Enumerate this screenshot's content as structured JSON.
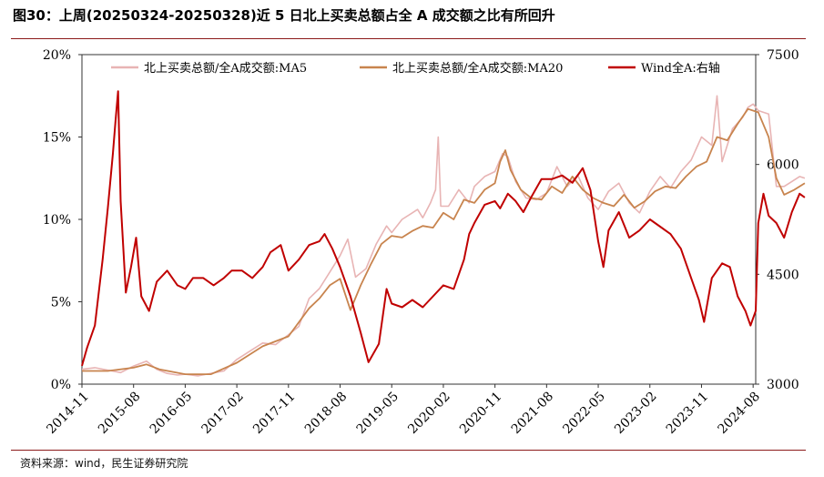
{
  "header": {
    "title": "图30：上周(20250324-20250328)近 5 日北上买卖总额占全 A 成交额之比有所回升"
  },
  "footer": {
    "source": "资料来源：wind，民生证券研究院"
  },
  "colors": {
    "ma5": "#e8b4b4",
    "ma20": "#c8844e",
    "wind": "#c00000",
    "rule": "#8b1a1a"
  },
  "chart_data": {
    "type": "line",
    "title": "上周(20250324-20250328)近 5 日北上买卖总额占全 A 成交额之比有所回升",
    "x_labels": [
      "2014-11",
      "2015-08",
      "2016-05",
      "2017-02",
      "2017-11",
      "2018-08",
      "2019-05",
      "2020-02",
      "2020-11",
      "2021-08",
      "2022-05",
      "2023-02",
      "2023-11",
      "2024-08"
    ],
    "y_left": {
      "range": [
        0,
        20
      ],
      "ticks": [
        "0%",
        "5%",
        "10%",
        "15%",
        "20%"
      ]
    },
    "y_right": {
      "range": [
        3000,
        7500
      ],
      "ticks": [
        "3000",
        "4500",
        "6000",
        "7500"
      ]
    },
    "legend": {
      "position": "top",
      "entries": [
        "北上买卖总额/全A成交额:MA5",
        "北上买卖总额/全A成交额:MA20",
        "Wind全A:右轴"
      ]
    },
    "series": [
      {
        "name": "北上买卖总额/全A成交额:MA5",
        "axis": "left",
        "points": [
          [
            0,
            0.9
          ],
          [
            0.25,
            1.0
          ],
          [
            0.5,
            0.85
          ],
          [
            0.75,
            0.7
          ],
          [
            1.0,
            1.1
          ],
          [
            1.25,
            1.4
          ],
          [
            1.45,
            0.9
          ],
          [
            1.65,
            0.65
          ],
          [
            1.85,
            0.55
          ],
          [
            2.0,
            0.6
          ],
          [
            2.25,
            0.5
          ],
          [
            2.5,
            0.65
          ],
          [
            2.75,
            0.8
          ],
          [
            3.0,
            1.5
          ],
          [
            3.25,
            2.0
          ],
          [
            3.5,
            2.5
          ],
          [
            3.75,
            2.4
          ],
          [
            4.0,
            3.0
          ],
          [
            4.2,
            3.5
          ],
          [
            4.4,
            5.2
          ],
          [
            4.6,
            5.8
          ],
          [
            4.8,
            6.8
          ],
          [
            5.0,
            7.8
          ],
          [
            5.15,
            8.8
          ],
          [
            5.3,
            6.5
          ],
          [
            5.5,
            7.0
          ],
          [
            5.7,
            8.5
          ],
          [
            5.9,
            9.6
          ],
          [
            6.0,
            9.2
          ],
          [
            6.2,
            10.0
          ],
          [
            6.4,
            10.4
          ],
          [
            6.5,
            10.6
          ],
          [
            6.6,
            10.1
          ],
          [
            6.75,
            11.0
          ],
          [
            6.85,
            11.8
          ],
          [
            6.9,
            15.0
          ],
          [
            6.95,
            10.8
          ],
          [
            7.1,
            10.8
          ],
          [
            7.3,
            11.8
          ],
          [
            7.5,
            11.0
          ],
          [
            7.6,
            12.0
          ],
          [
            7.8,
            12.6
          ],
          [
            8.0,
            12.9
          ],
          [
            8.15,
            14.0
          ],
          [
            8.25,
            13.8
          ],
          [
            8.4,
            12.3
          ],
          [
            8.6,
            11.3
          ],
          [
            8.8,
            11.2
          ],
          [
            9.0,
            11.6
          ],
          [
            9.2,
            13.2
          ],
          [
            9.4,
            12.0
          ],
          [
            9.6,
            12.7
          ],
          [
            9.8,
            11.3
          ],
          [
            10.0,
            10.6
          ],
          [
            10.2,
            11.7
          ],
          [
            10.4,
            12.2
          ],
          [
            10.6,
            11.0
          ],
          [
            10.8,
            10.4
          ],
          [
            11.0,
            11.7
          ],
          [
            11.2,
            12.6
          ],
          [
            11.4,
            11.9
          ],
          [
            11.6,
            12.9
          ],
          [
            11.8,
            13.6
          ],
          [
            12.0,
            15.0
          ],
          [
            12.2,
            14.5
          ],
          [
            12.3,
            17.5
          ],
          [
            12.4,
            13.5
          ],
          [
            12.6,
            15.5
          ],
          [
            12.8,
            16.2
          ],
          [
            12.9,
            16.8
          ],
          [
            13.0,
            17.0
          ],
          [
            13.1,
            16.6
          ],
          [
            13.3,
            16.4
          ],
          [
            13.45,
            12.0
          ],
          [
            13.6,
            12.0
          ],
          [
            13.75,
            12.3
          ],
          [
            13.9,
            12.6
          ],
          [
            14.0,
            12.5
          ]
        ]
      },
      {
        "name": "北上买卖总额/全A成交额:MA20",
        "axis": "left",
        "points": [
          [
            0,
            0.8
          ],
          [
            0.5,
            0.8
          ],
          [
            1.0,
            1.0
          ],
          [
            1.25,
            1.2
          ],
          [
            1.5,
            0.9
          ],
          [
            2.0,
            0.6
          ],
          [
            2.5,
            0.6
          ],
          [
            3.0,
            1.3
          ],
          [
            3.5,
            2.3
          ],
          [
            4.0,
            2.9
          ],
          [
            4.4,
            4.6
          ],
          [
            4.6,
            5.2
          ],
          [
            4.8,
            6.0
          ],
          [
            5.0,
            6.4
          ],
          [
            5.2,
            4.5
          ],
          [
            5.4,
            6.0
          ],
          [
            5.6,
            7.3
          ],
          [
            5.8,
            8.5
          ],
          [
            6.0,
            9.0
          ],
          [
            6.2,
            8.9
          ],
          [
            6.4,
            9.3
          ],
          [
            6.6,
            9.6
          ],
          [
            6.8,
            9.5
          ],
          [
            7.0,
            10.4
          ],
          [
            7.2,
            10.0
          ],
          [
            7.4,
            11.2
          ],
          [
            7.6,
            11.0
          ],
          [
            7.8,
            11.8
          ],
          [
            8.0,
            12.2
          ],
          [
            8.1,
            13.5
          ],
          [
            8.2,
            14.2
          ],
          [
            8.3,
            13.0
          ],
          [
            8.5,
            11.8
          ],
          [
            8.7,
            11.3
          ],
          [
            8.9,
            11.2
          ],
          [
            9.1,
            12.0
          ],
          [
            9.3,
            11.6
          ],
          [
            9.5,
            12.6
          ],
          [
            9.7,
            11.8
          ],
          [
            9.9,
            11.3
          ],
          [
            10.1,
            11.0
          ],
          [
            10.3,
            10.8
          ],
          [
            10.5,
            11.5
          ],
          [
            10.7,
            10.7
          ],
          [
            10.9,
            11.1
          ],
          [
            11.1,
            11.7
          ],
          [
            11.3,
            12.0
          ],
          [
            11.5,
            11.9
          ],
          [
            11.7,
            12.6
          ],
          [
            11.9,
            13.2
          ],
          [
            12.1,
            13.5
          ],
          [
            12.3,
            15.0
          ],
          [
            12.5,
            14.8
          ],
          [
            12.7,
            15.8
          ],
          [
            12.9,
            16.7
          ],
          [
            13.1,
            16.5
          ],
          [
            13.3,
            15.0
          ],
          [
            13.45,
            12.5
          ],
          [
            13.6,
            11.5
          ],
          [
            13.8,
            11.8
          ],
          [
            14.0,
            12.2
          ]
        ]
      },
      {
        "name": "Wind全A:右轴",
        "axis": "right",
        "points": [
          [
            0,
            3250
          ],
          [
            0.1,
            3500
          ],
          [
            0.25,
            3800
          ],
          [
            0.4,
            4700
          ],
          [
            0.5,
            5400
          ],
          [
            0.6,
            6150
          ],
          [
            0.65,
            6600
          ],
          [
            0.7,
            7000
          ],
          [
            0.75,
            5500
          ],
          [
            0.85,
            4250
          ],
          [
            0.95,
            4600
          ],
          [
            1.05,
            5000
          ],
          [
            1.15,
            4200
          ],
          [
            1.3,
            4000
          ],
          [
            1.45,
            4400
          ],
          [
            1.65,
            4550
          ],
          [
            1.85,
            4350
          ],
          [
            2.0,
            4300
          ],
          [
            2.15,
            4450
          ],
          [
            2.35,
            4450
          ],
          [
            2.55,
            4350
          ],
          [
            2.75,
            4450
          ],
          [
            2.9,
            4550
          ],
          [
            3.1,
            4550
          ],
          [
            3.3,
            4450
          ],
          [
            3.5,
            4600
          ],
          [
            3.65,
            4800
          ],
          [
            3.85,
            4900
          ],
          [
            4.0,
            4550
          ],
          [
            4.2,
            4700
          ],
          [
            4.4,
            4900
          ],
          [
            4.6,
            4950
          ],
          [
            4.7,
            5050
          ],
          [
            4.85,
            4850
          ],
          [
            5.0,
            4600
          ],
          [
            5.2,
            4200
          ],
          [
            5.4,
            3700
          ],
          [
            5.55,
            3300
          ],
          [
            5.75,
            3550
          ],
          [
            5.9,
            4300
          ],
          [
            6.0,
            4100
          ],
          [
            6.2,
            4050
          ],
          [
            6.4,
            4150
          ],
          [
            6.6,
            4050
          ],
          [
            6.8,
            4200
          ],
          [
            7.0,
            4350
          ],
          [
            7.2,
            4300
          ],
          [
            7.4,
            4700
          ],
          [
            7.5,
            5050
          ],
          [
            7.6,
            5200
          ],
          [
            7.8,
            5450
          ],
          [
            8.0,
            5500
          ],
          [
            8.1,
            5400
          ],
          [
            8.25,
            5600
          ],
          [
            8.4,
            5500
          ],
          [
            8.55,
            5350
          ],
          [
            8.7,
            5550
          ],
          [
            8.9,
            5800
          ],
          [
            9.1,
            5800
          ],
          [
            9.3,
            5850
          ],
          [
            9.5,
            5750
          ],
          [
            9.7,
            5950
          ],
          [
            9.85,
            5650
          ],
          [
            10.0,
            4950
          ],
          [
            10.1,
            4600
          ],
          [
            10.2,
            5100
          ],
          [
            10.4,
            5350
          ],
          [
            10.6,
            5000
          ],
          [
            10.8,
            5100
          ],
          [
            11.0,
            5250
          ],
          [
            11.2,
            5150
          ],
          [
            11.4,
            5050
          ],
          [
            11.6,
            4850
          ],
          [
            11.8,
            4450
          ],
          [
            11.95,
            4150
          ],
          [
            12.05,
            3850
          ],
          [
            12.2,
            4450
          ],
          [
            12.4,
            4650
          ],
          [
            12.55,
            4600
          ],
          [
            12.7,
            4200
          ],
          [
            12.85,
            4000
          ],
          [
            12.95,
            3800
          ],
          [
            13.05,
            4000
          ],
          [
            13.1,
            5200
          ],
          [
            13.2,
            5600
          ],
          [
            13.3,
            5300
          ],
          [
            13.45,
            5200
          ],
          [
            13.6,
            5000
          ],
          [
            13.75,
            5350
          ],
          [
            13.9,
            5600
          ],
          [
            14.0,
            5550
          ]
        ]
      }
    ]
  }
}
